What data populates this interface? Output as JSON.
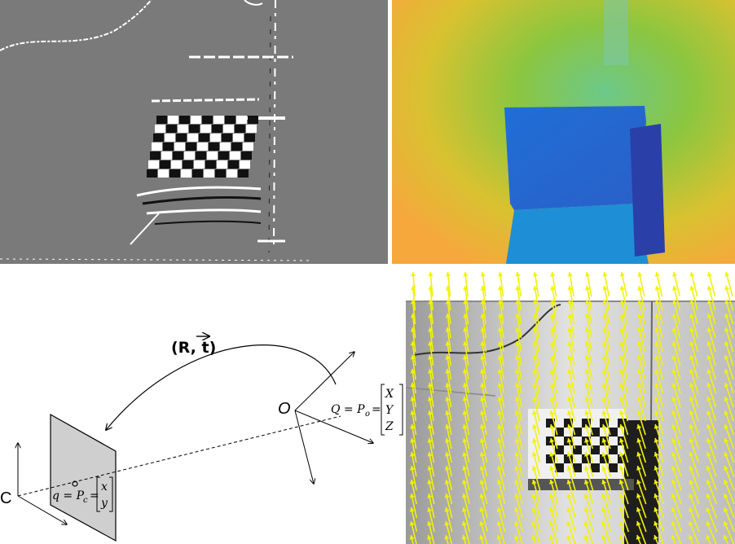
{
  "panels": {
    "events": {
      "name": "event-frame"
    },
    "depth": {
      "name": "depth-map"
    },
    "geometry": {
      "transform_label": "(R, t)",
      "camera_label": "C",
      "object_label": "O",
      "q_eq": "q = P",
      "q_sub": "c",
      "q_vec": [
        "x",
        "y"
      ],
      "Q_eq": "Q = P",
      "Q_sub": "o",
      "Q_vec": [
        "X",
        "Y",
        "Z"
      ]
    },
    "flow": {
      "name": "optical-flow",
      "arrow_color": "#f2f20a"
    }
  },
  "colors": {
    "event_bg": "#7a7a7a",
    "depth_far": "#f6b73c",
    "depth_mid": "#8cc63f",
    "depth_near": "#1f6fd6",
    "depth_nearest": "#2a3fa8",
    "plane_fill": "#cfcfcf"
  }
}
